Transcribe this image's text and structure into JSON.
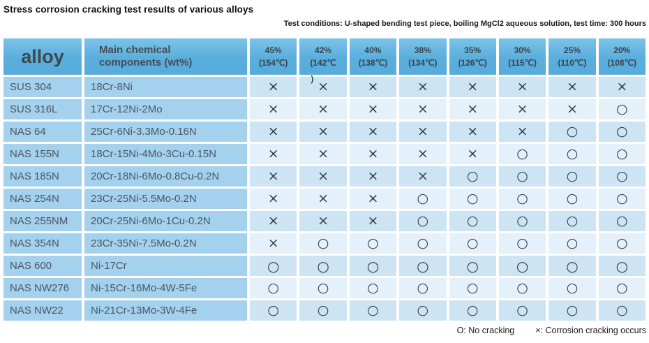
{
  "title": "Stress corrosion cracking test results of various alloys",
  "conditions": "Test conditions: U-shaped bending test piece, boiling MgCl2 aqueous solution, test time: 300 hours",
  "table": {
    "header": {
      "alloy": "alloy",
      "components": "Main chemical components (wt%)",
      "concentrations": [
        {
          "pct": "45%",
          "temp": "(154℃)"
        },
        {
          "pct": "42%",
          "temp": "(142℃",
          "overflow": ")"
        },
        {
          "pct": "40%",
          "temp": "(138℃)"
        },
        {
          "pct": "38%",
          "temp": "(134℃)"
        },
        {
          "pct": "35%",
          "temp": "(126℃)"
        },
        {
          "pct": "30%",
          "temp": "(115℃)"
        },
        {
          "pct": "25%",
          "temp": "(110℃)"
        },
        {
          "pct": "20%",
          "temp": "(108℃)"
        }
      ]
    },
    "rows": [
      {
        "alloy": "SUS 304",
        "components": "18Cr-8Ni",
        "results": [
          "×",
          "×",
          "×",
          "×",
          "×",
          "×",
          "×",
          "×"
        ]
      },
      {
        "alloy": "SUS 316L",
        "components": "17Cr-12Ni-2Mo",
        "results": [
          "×",
          "×",
          "×",
          "×",
          "×",
          "×",
          "×",
          "○"
        ]
      },
      {
        "alloy": "NAS 64",
        "components": "25Cr-6Ni-3.3Mo-0.16N",
        "results": [
          "×",
          "×",
          "×",
          "×",
          "×",
          "×",
          "○",
          "○"
        ]
      },
      {
        "alloy": "NAS 155N",
        "components": "18Cr-15Ni-4Mo-3Cu-0.15N",
        "results": [
          "×",
          "×",
          "×",
          "×",
          "×",
          "○",
          "○",
          "○"
        ]
      },
      {
        "alloy": "NAS 185N",
        "components": "20Cr-18Ni-6Mo-0.8Cu-0.2N",
        "results": [
          "×",
          "×",
          "×",
          "×",
          "○",
          "○",
          "○",
          "○"
        ]
      },
      {
        "alloy": "NAS 254N",
        "components": "23Cr-25Ni-5.5Mo-0.2N",
        "results": [
          "×",
          "×",
          "×",
          "○",
          "○",
          "○",
          "○",
          "○"
        ]
      },
      {
        "alloy": "NAS 255NM",
        "components": "20Cr-25Ni-6Mo-1Cu-0.2N",
        "results": [
          "×",
          "×",
          "×",
          "○",
          "○",
          "○",
          "○",
          "○"
        ]
      },
      {
        "alloy": "NAS 354N",
        "components": "23Cr-35Ni-7.5Mo-0.2N",
        "results": [
          "×",
          "○",
          "○",
          "○",
          "○",
          "○",
          "○",
          "○"
        ]
      },
      {
        "alloy": "NAS 600",
        "components": "Ni-17Cr",
        "bold": true,
        "results": [
          "○",
          "○",
          "○",
          "○",
          "○",
          "○",
          "○",
          "○"
        ]
      },
      {
        "alloy": "NAS NW276",
        "components": "Ni-15Cr-16Mo-4W-5Fe",
        "results": [
          "○",
          "○",
          "○",
          "○",
          "○",
          "○",
          "○",
          "○"
        ]
      },
      {
        "alloy": "NAS NW22",
        "components": "Ni-21Cr-13Mo-3W-4Fe",
        "results": [
          "○",
          "○",
          "○",
          "○",
          "○",
          "○",
          "○",
          "○"
        ]
      }
    ]
  },
  "legend": {
    "no_cracking": "O: No cracking",
    "cracking": "×: Corrosion cracking occurs"
  },
  "colors": {
    "header_blue": "#5aaedd",
    "label_blue": "#a3d1ee",
    "result_dark": "#cde4f5",
    "result_light": "#e4f1fb"
  }
}
